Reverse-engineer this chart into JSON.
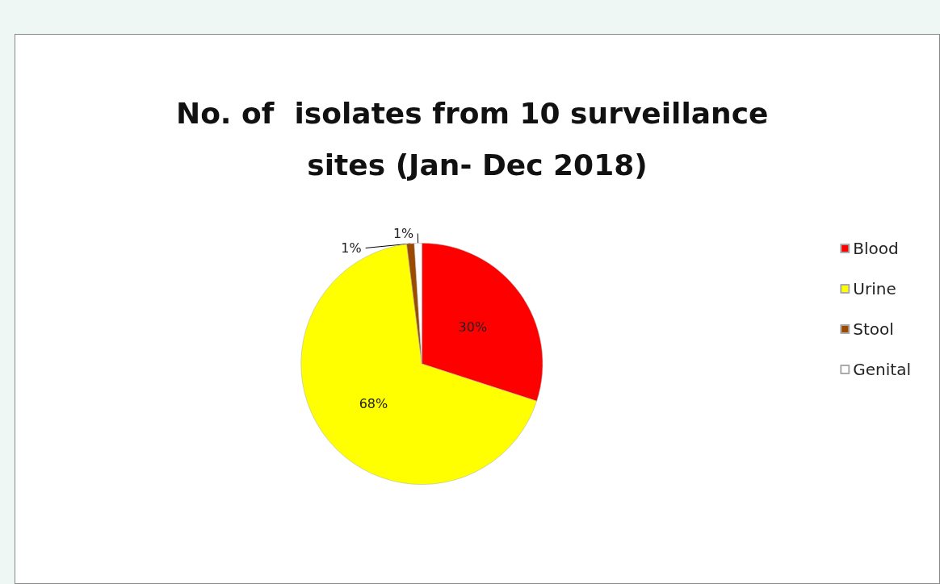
{
  "chart_data": {
    "type": "pie",
    "title": "No. of  isolates from 10 surveillance sites (Jan- Dec 2018)",
    "categories": [
      "Blood",
      "Urine",
      "Stool",
      "Genital"
    ],
    "values": [
      30,
      68,
      1,
      1
    ],
    "colors": [
      "#ff0000",
      "#ffff00",
      "#9c4a00",
      "#ffffff"
    ],
    "value_labels": [
      "30%",
      "68%",
      "1%",
      "1%"
    ],
    "legend": "right"
  }
}
